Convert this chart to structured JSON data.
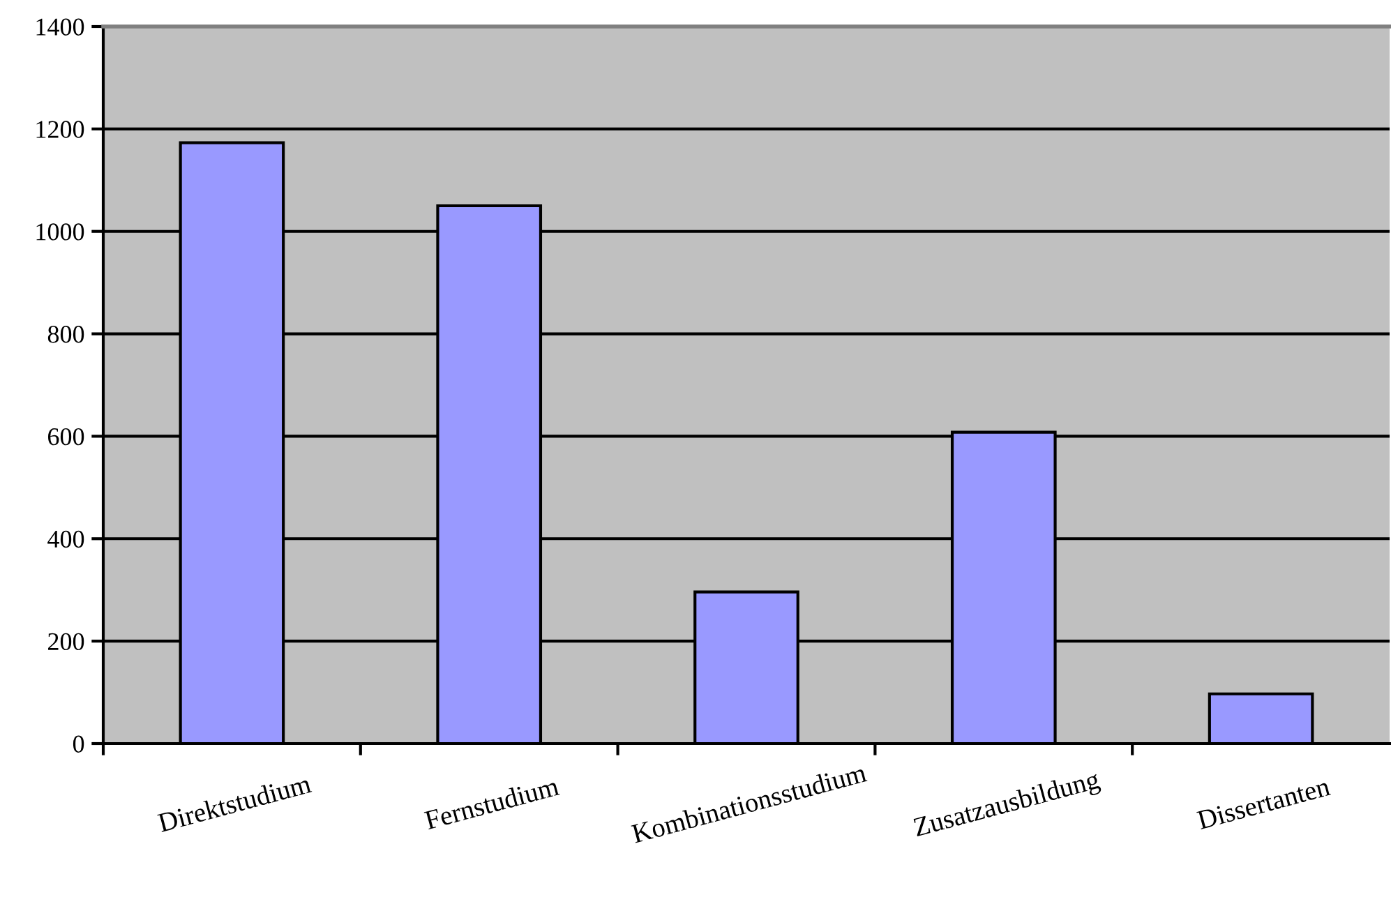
{
  "chart_data": {
    "type": "bar",
    "categories": [
      "Direktstudium",
      "Fernstudium",
      "Kombinationsstudium",
      "Zusatzausbildung",
      "Dissertanten"
    ],
    "values": [
      1173,
      1050,
      296,
      608,
      97
    ],
    "color": "#9999ff",
    "ylim": [
      0,
      1400
    ],
    "yticks": [
      0,
      200,
      400,
      600,
      800,
      1000,
      1200,
      1400
    ],
    "grid": "y",
    "legend": false
  }
}
